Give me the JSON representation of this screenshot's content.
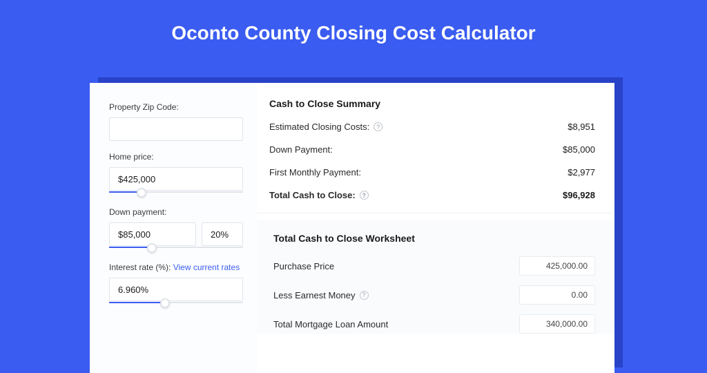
{
  "colors": {
    "page_bg": "#3a5cf0",
    "card_bg": "#ffffff",
    "shadow_bg": "#2842c8",
    "left_bg": "#fcfdff",
    "worksheet_bg": "#fafbfd",
    "border": "#e1e4ea",
    "text": "#1a1a1a",
    "link": "#3a5cf0",
    "slider_fill": "#3a5cf0",
    "slider_track": "#e1e4ea"
  },
  "header": {
    "title": "Oconto County Closing Cost Calculator",
    "title_fontsize": 28,
    "title_color": "#ffffff"
  },
  "inputs": {
    "zip": {
      "label": "Property Zip Code:",
      "value": ""
    },
    "home_price": {
      "label": "Home price:",
      "value": "$425,000",
      "slider_pct": 24
    },
    "down_payment": {
      "label": "Down payment:",
      "value": "$85,000",
      "pct": "20%",
      "slider_pct": 32
    },
    "interest_rate": {
      "label_prefix": "Interest rate (%): ",
      "link_text": "View current rates",
      "value": "6.960%",
      "slider_pct": 42
    }
  },
  "summary": {
    "title": "Cash to Close Summary",
    "rows": [
      {
        "label": "Estimated Closing Costs:",
        "help": true,
        "value": "$8,951"
      },
      {
        "label": "Down Payment:",
        "help": false,
        "value": "$85,000"
      },
      {
        "label": "First Monthly Payment:",
        "help": false,
        "value": "$2,977"
      }
    ],
    "total": {
      "label": "Total Cash to Close:",
      "help": true,
      "value": "$96,928"
    }
  },
  "worksheet": {
    "title": "Total Cash to Close Worksheet",
    "rows": [
      {
        "label": "Purchase Price",
        "help": false,
        "value": "425,000.00"
      },
      {
        "label": "Less Earnest Money",
        "help": true,
        "value": "0.00"
      },
      {
        "label": "Total Mortgage Loan Amount",
        "help": false,
        "value": "340,000.00"
      }
    ]
  }
}
